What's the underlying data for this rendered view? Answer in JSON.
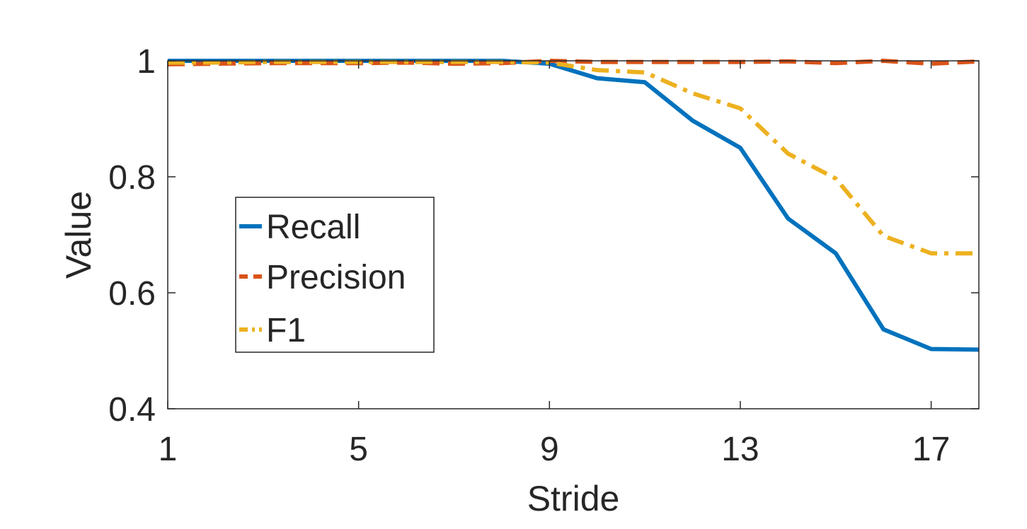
{
  "chart_data": {
    "type": "line",
    "title": "",
    "xlabel": "Stride",
    "ylabel": "Value",
    "xlim": [
      1,
      18
    ],
    "ylim": [
      0.4,
      1
    ],
    "xticks": [
      "1",
      "5",
      "9",
      "13",
      "17"
    ],
    "yticks": [
      "0.4",
      "0.6",
      "0.8",
      "1"
    ],
    "grid": false,
    "legend_position": "center-left",
    "x": [
      1,
      2,
      3,
      4,
      5,
      6,
      7,
      8,
      9,
      10,
      11,
      12,
      13,
      14,
      15,
      16,
      17,
      18
    ],
    "series": [
      {
        "name": "Recall",
        "color": "#0072BD",
        "style": "solid",
        "values": [
          1.0,
          1.0,
          1.0,
          1.0,
          1.0,
          1.0,
          1.0,
          1.0,
          0.995,
          0.97,
          0.963,
          0.897,
          0.85,
          0.728,
          0.668,
          0.537,
          0.503,
          0.502
        ]
      },
      {
        "name": "Precision",
        "color": "#D95319",
        "style": "dashed",
        "values": [
          0.994,
          0.995,
          0.996,
          0.996,
          0.996,
          0.997,
          0.995,
          0.996,
          1.0,
          0.998,
          0.998,
          0.998,
          0.998,
          0.999,
          0.996,
          1.0,
          0.995,
          0.999
        ]
      },
      {
        "name": "F1",
        "color": "#EDB120",
        "style": "dash-dot",
        "values": [
          0.997,
          0.997,
          0.998,
          0.998,
          0.998,
          0.998,
          0.998,
          0.998,
          0.997,
          0.984,
          0.98,
          0.944,
          0.918,
          0.84,
          0.797,
          0.698,
          0.668,
          0.668
        ]
      }
    ]
  }
}
